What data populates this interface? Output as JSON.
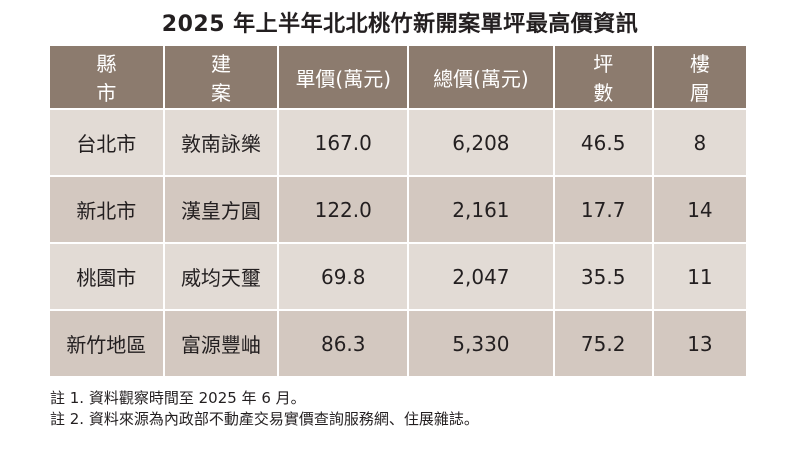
{
  "title": "2025 年上半年北北桃竹新開案單坪最高價資訊",
  "table": {
    "headers": [
      "縣 市",
      "建 案",
      "單價(萬元)",
      "總價(萬元)",
      "坪 數",
      "樓 層"
    ],
    "rows": [
      [
        "台北市",
        "敦南詠樂",
        "167.0",
        "6,208",
        "46.5",
        "8"
      ],
      [
        "新北市",
        "漢皇方圓",
        "122.0",
        "2,161",
        "17.7",
        "14"
      ],
      [
        "桃園市",
        "威均天璽",
        "69.8",
        "2,047",
        "35.5",
        "11"
      ],
      [
        "新竹地區",
        "富源豐岫",
        "86.3",
        "5,330",
        "75.2",
        "13"
      ]
    ]
  },
  "notes": [
    "註 1. 資料觀察時間至 2025 年 6 月。",
    "註 2. 資料來源為內政部不動產交易實價查詢服務網、住展雜誌。"
  ],
  "colors": {
    "header_bg": "#8c7b6e",
    "row_light": "#e2dbd5",
    "row_dark": "#d3c8c0",
    "text": "#231f20"
  }
}
